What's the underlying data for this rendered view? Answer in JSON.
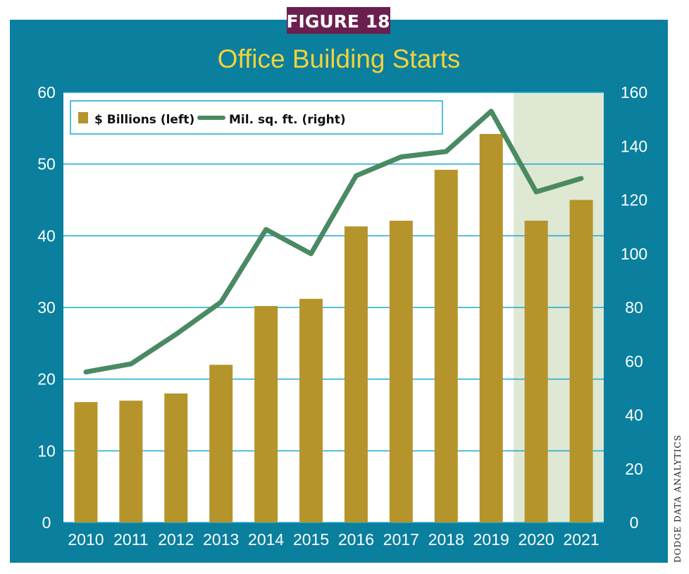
{
  "figure_label": "FIGURE 18",
  "source": "DODGE DATA ANALYTICS",
  "colors": {
    "panel": "#0a7f9e",
    "badge": "#6b1f4e",
    "title": "#f2d23a",
    "bar": "#b5942c",
    "line": "#4a8a62",
    "forecast_shade": "#dfe8d3",
    "gridline": "#1aa8d2"
  },
  "chart_data": {
    "type": "bar",
    "title": "Office Building Starts",
    "categories": [
      "2010",
      "2011",
      "2012",
      "2013",
      "2014",
      "2015",
      "2016",
      "2017",
      "2018",
      "2019",
      "2020",
      "2021"
    ],
    "series": [
      {
        "name": "$ Billions (left)",
        "type": "bar",
        "axis": "left",
        "values": [
          16.8,
          17.0,
          18.0,
          22.0,
          30.2,
          31.2,
          41.3,
          42.1,
          49.2,
          54.2,
          42.1,
          45.0
        ]
      },
      {
        "name": "Mil. sq. ft. (right)",
        "type": "line",
        "axis": "right",
        "values": [
          56,
          59,
          70,
          82,
          109,
          100,
          129,
          136,
          138,
          153,
          123,
          128
        ]
      }
    ],
    "y_left": {
      "ticks": [
        "0",
        "10",
        "20",
        "30",
        "40",
        "50",
        "60"
      ],
      "lim": [
        0,
        60
      ]
    },
    "y_right": {
      "ticks": [
        "0",
        "20",
        "40",
        "60",
        "80",
        "100",
        "120",
        "140",
        "160"
      ],
      "lim": [
        0,
        160
      ]
    },
    "shaded_categories": [
      "2020",
      "2021"
    ],
    "grid": true,
    "legend_position": "top-left"
  }
}
